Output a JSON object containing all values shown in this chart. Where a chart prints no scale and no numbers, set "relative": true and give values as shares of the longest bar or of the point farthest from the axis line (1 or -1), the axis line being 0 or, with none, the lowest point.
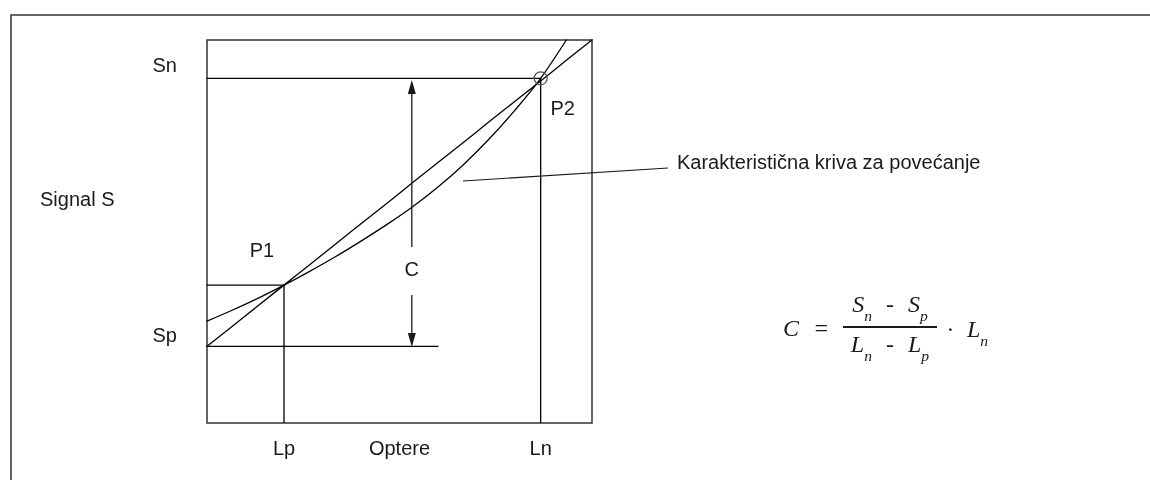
{
  "chart_data": {
    "type": "line",
    "relative": true,
    "xlabel": "Optere",
    "ylabel": "Signal S",
    "categories": [
      null,
      null,
      null,
      "Lp",
      null,
      null,
      null,
      null,
      null,
      null,
      null,
      null,
      null,
      "Ln",
      null,
      null
    ],
    "series": [
      {
        "values": [
          0.266,
          0.295,
          0.326,
          0.36,
          0.396,
          0.434,
          0.475,
          0.518,
          0.564,
          0.616,
          0.675,
          0.742,
          0.817,
          0.9,
          1.0,
          null
        ],
        "color": "#000000"
      },
      {
        "values": [
          0.2,
          0.253,
          0.307,
          0.36,
          0.413,
          0.467,
          0.52,
          0.573,
          0.627,
          0.68,
          0.733,
          0.787,
          0.84,
          0.893,
          0.947,
          1.0
        ],
        "color": "#000000"
      },
      {
        "values": [
          0.9,
          0.9,
          0.9,
          0.9,
          0.9,
          0.9,
          0.9,
          0.9,
          0.9,
          0.9,
          0.9,
          0.9,
          0.9,
          0.9,
          null,
          null
        ],
        "color": "#000000"
      },
      {
        "values": [
          0.2,
          0.2,
          0.2,
          0.2,
          0.2,
          0.2,
          0.2,
          0.2,
          0.2,
          0.2,
          null,
          null,
          null,
          null,
          null,
          null
        ],
        "color": "#000000"
      },
      {
        "values": [
          0.36,
          0.36,
          0.36,
          0.36,
          null,
          null,
          null,
          null,
          null,
          null,
          null,
          null,
          null,
          null,
          null,
          null
        ],
        "color": "#000000"
      },
      {
        "type": "bar",
        "values": [
          null,
          null,
          null,
          0.36,
          null,
          null,
          null,
          null,
          null,
          null,
          null,
          null,
          null,
          0.9,
          null,
          null
        ],
        "color": "#000000"
      },
      {
        "type": "scatter",
        "values": [
          null,
          null,
          null,
          null,
          null,
          null,
          null,
          null,
          null,
          null,
          null,
          null,
          null,
          0.9,
          null,
          null
        ],
        "color": "#555555",
        "marker": "circle"
      }
    ],
    "annotations": [
      "Sn",
      "Sp",
      {
        "text": "P1",
        "x": "Lp",
        "y": 0.36
      },
      {
        "text": "P2",
        "x": "Ln",
        "y": 0.9
      },
      "Karakteristična kriva za povećanje",
      "C",
      "C =",
      "S$_{n}$ - S$_{p}$",
      "L$_{n}$ - L$_{p}$",
      "· L$_{n}$"
    ]
  }
}
